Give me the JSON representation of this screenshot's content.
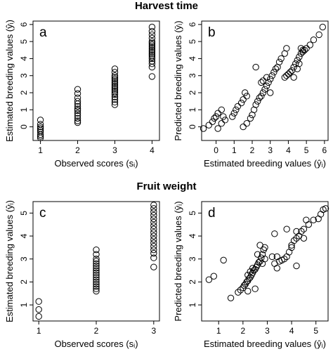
{
  "sections": {
    "top_title": "Harvest time",
    "bottom_title": "Fruit weight"
  },
  "colors": {
    "axis": "#000000",
    "marker": "#000000",
    "background": "#ffffff"
  },
  "chart_data": [
    {
      "panel": "a",
      "type": "scatter",
      "marker": "open-circle",
      "xlabel": "Observed scores (sᵢ)",
      "ylabel": "Estimated breeding values (ŷᵢ)",
      "xlim": [
        0.8,
        4.2
      ],
      "ylim": [
        -0.8,
        6.2
      ],
      "xticks": [
        1,
        2,
        3,
        4
      ],
      "yticks": [
        0,
        1,
        2,
        3,
        4,
        5,
        6
      ],
      "series": [
        {
          "points": [
            [
              1,
              0.4
            ],
            [
              1,
              0.15
            ],
            [
              1,
              0.0
            ],
            [
              1,
              -0.1
            ],
            [
              1,
              -0.2
            ],
            [
              1,
              -0.3
            ],
            [
              1,
              -0.45
            ],
            [
              1,
              -0.55
            ],
            [
              1,
              -0.65
            ],
            [
              2,
              2.2
            ],
            [
              2,
              1.95
            ],
            [
              2,
              1.7
            ],
            [
              2,
              1.5
            ],
            [
              2,
              1.35
            ],
            [
              2,
              1.2
            ],
            [
              2,
              1.05
            ],
            [
              2,
              0.95
            ],
            [
              2,
              0.8
            ],
            [
              2,
              0.65
            ],
            [
              2,
              0.5
            ],
            [
              2,
              0.35
            ],
            [
              2,
              0.25
            ],
            [
              3,
              3.4
            ],
            [
              3,
              3.2
            ],
            [
              3,
              3.0
            ],
            [
              3,
              2.9
            ],
            [
              3,
              2.8
            ],
            [
              3,
              2.7
            ],
            [
              3,
              2.6
            ],
            [
              3,
              2.5
            ],
            [
              3,
              2.4
            ],
            [
              3,
              2.3
            ],
            [
              3,
              2.2
            ],
            [
              3,
              2.1
            ],
            [
              3,
              2.0
            ],
            [
              3,
              1.9
            ],
            [
              3,
              1.75
            ],
            [
              3,
              1.6
            ],
            [
              3,
              1.45
            ],
            [
              3,
              1.3
            ],
            [
              4,
              5.85
            ],
            [
              4,
              5.6
            ],
            [
              4,
              5.4
            ],
            [
              4,
              5.2
            ],
            [
              4,
              5.0
            ],
            [
              4,
              4.9
            ],
            [
              4,
              4.8
            ],
            [
              4,
              4.7
            ],
            [
              4,
              4.6
            ],
            [
              4,
              4.5
            ],
            [
              4,
              4.4
            ],
            [
              4,
              4.3
            ],
            [
              4,
              4.2
            ],
            [
              4,
              4.1
            ],
            [
              4,
              4.0
            ],
            [
              4,
              3.85
            ],
            [
              4,
              3.7
            ],
            [
              4,
              3.5
            ],
            [
              4,
              2.95
            ]
          ]
        }
      ]
    },
    {
      "panel": "b",
      "type": "scatter",
      "marker": "open-circle",
      "xlabel": "Estimated breeding values (ŷᵢ)",
      "ylabel": "Predicted breeding values (ȳᵢ)",
      "xlim": [
        -0.8,
        6.2
      ],
      "ylim": [
        -0.8,
        6.2
      ],
      "xticks": [
        0,
        1,
        2,
        3,
        4,
        5,
        6
      ],
      "yticks": [
        0,
        1,
        2,
        3,
        4,
        5,
        6
      ],
      "series": [
        {
          "points": [
            [
              -0.7,
              -0.1
            ],
            [
              -0.4,
              0.1
            ],
            [
              -0.2,
              0.3
            ],
            [
              -0.1,
              0.5
            ],
            [
              0.0,
              0.6
            ],
            [
              0.1,
              0.8
            ],
            [
              0.3,
              1.0
            ],
            [
              0.4,
              0.6
            ],
            [
              0.1,
              -0.1
            ],
            [
              0.3,
              0.2
            ],
            [
              0.5,
              0.4
            ],
            [
              0.9,
              0.6
            ],
            [
              1.0,
              0.8
            ],
            [
              1.1,
              1.0
            ],
            [
              1.2,
              1.2
            ],
            [
              1.4,
              1.4
            ],
            [
              1.5,
              1.6
            ],
            [
              1.7,
              1.8
            ],
            [
              1.6,
              2.0
            ],
            [
              1.5,
              0.0
            ],
            [
              1.7,
              0.2
            ],
            [
              1.9,
              0.5
            ],
            [
              2.0,
              0.7
            ],
            [
              2.1,
              1.0
            ],
            [
              2.2,
              1.3
            ],
            [
              2.3,
              1.5
            ],
            [
              2.4,
              1.7
            ],
            [
              2.5,
              1.8
            ],
            [
              2.6,
              2.0
            ],
            [
              2.7,
              2.2
            ],
            [
              2.8,
              2.4
            ],
            [
              2.9,
              2.6
            ],
            [
              3.0,
              2.8
            ],
            [
              3.1,
              3.0
            ],
            [
              3.2,
              3.2
            ],
            [
              3.3,
              3.4
            ],
            [
              3.4,
              3.5
            ],
            [
              3.5,
              3.8
            ],
            [
              3.6,
              4.0
            ],
            [
              3.8,
              4.3
            ],
            [
              3.9,
              4.6
            ],
            [
              2.2,
              3.5
            ],
            [
              2.5,
              2.6
            ],
            [
              2.6,
              2.7
            ],
            [
              2.8,
              2.9
            ],
            [
              3.0,
              2.0
            ],
            [
              3.8,
              2.9
            ],
            [
              3.9,
              3.0
            ],
            [
              4.0,
              3.1
            ],
            [
              4.1,
              3.2
            ],
            [
              4.2,
              3.3
            ],
            [
              4.3,
              3.5
            ],
            [
              4.4,
              3.7
            ],
            [
              4.5,
              3.9
            ],
            [
              4.6,
              4.1
            ],
            [
              4.7,
              4.3
            ],
            [
              4.8,
              4.4
            ],
            [
              4.9,
              4.5
            ],
            [
              5.0,
              4.6
            ],
            [
              5.2,
              4.8
            ],
            [
              5.4,
              5.1
            ],
            [
              5.7,
              5.4
            ],
            [
              5.9,
              5.85
            ],
            [
              4.3,
              2.9
            ],
            [
              4.5,
              3.4
            ],
            [
              4.6,
              3.7
            ],
            [
              4.7,
              4.6
            ],
            [
              4.8,
              4.5
            ]
          ]
        }
      ]
    },
    {
      "panel": "c",
      "type": "scatter",
      "marker": "open-circle",
      "xlabel": "Observed scores (sᵢ)",
      "ylabel": "Estimated breeding values (ŷᵢ)",
      "xlim": [
        0.9,
        3.1
      ],
      "ylim": [
        0.3,
        5.5
      ],
      "xticks": [
        1,
        2,
        3
      ],
      "yticks": [
        1,
        2,
        3,
        4,
        5
      ],
      "series": [
        {
          "points": [
            [
              1,
              1.15
            ],
            [
              1,
              0.8
            ],
            [
              1,
              0.5
            ],
            [
              2,
              3.4
            ],
            [
              2,
              3.2
            ],
            [
              2,
              3.0
            ],
            [
              2,
              2.9
            ],
            [
              2,
              2.8
            ],
            [
              2,
              2.7
            ],
            [
              2,
              2.6
            ],
            [
              2,
              2.5
            ],
            [
              2,
              2.4
            ],
            [
              2,
              2.3
            ],
            [
              2,
              2.2
            ],
            [
              2,
              2.1
            ],
            [
              2,
              2.0
            ],
            [
              2,
              1.9
            ],
            [
              2,
              1.8
            ],
            [
              2,
              1.7
            ],
            [
              2,
              1.6
            ],
            [
              3,
              5.35
            ],
            [
              3,
              5.2
            ],
            [
              3,
              5.05
            ],
            [
              3,
              4.9
            ],
            [
              3,
              4.75
            ],
            [
              3,
              4.6
            ],
            [
              3,
              4.45
            ],
            [
              3,
              4.3
            ],
            [
              3,
              4.15
            ],
            [
              3,
              4.0
            ],
            [
              3,
              3.85
            ],
            [
              3,
              3.7
            ],
            [
              3,
              3.55
            ],
            [
              3,
              3.4
            ],
            [
              3,
              3.25
            ],
            [
              3,
              3.05
            ],
            [
              3,
              2.65
            ]
          ]
        }
      ]
    },
    {
      "panel": "d",
      "type": "scatter",
      "marker": "open-circle",
      "xlabel": "Estimated breeding values (ŷᵢ)",
      "ylabel": "Predicted breeding values (ȳᵢ)",
      "xlim": [
        0.3,
        5.5
      ],
      "ylim": [
        0.3,
        5.5
      ],
      "xticks": [
        1,
        2,
        3,
        4,
        5
      ],
      "yticks": [
        1,
        2,
        3,
        4,
        5
      ],
      "series": [
        {
          "points": [
            [
              0.6,
              2.1
            ],
            [
              0.8,
              2.25
            ],
            [
              1.2,
              2.95
            ],
            [
              1.5,
              1.3
            ],
            [
              1.8,
              1.55
            ],
            [
              1.9,
              1.65
            ],
            [
              2.0,
              1.75
            ],
            [
              2.05,
              1.85
            ],
            [
              2.1,
              1.9
            ],
            [
              2.15,
              2.0
            ],
            [
              2.2,
              2.05
            ],
            [
              2.25,
              2.15
            ],
            [
              2.3,
              2.2
            ],
            [
              2.35,
              2.3
            ],
            [
              2.4,
              2.4
            ],
            [
              2.45,
              2.5
            ],
            [
              2.5,
              2.55
            ],
            [
              2.55,
              2.65
            ],
            [
              2.6,
              2.75
            ],
            [
              2.65,
              2.85
            ],
            [
              2.7,
              2.9
            ],
            [
              2.75,
              3.05
            ],
            [
              2.8,
              3.2
            ],
            [
              2.85,
              3.4
            ],
            [
              2.2,
              2.3
            ],
            [
              2.3,
              2.45
            ],
            [
              2.4,
              2.6
            ],
            [
              2.6,
              3.2
            ],
            [
              2.7,
              3.6
            ],
            [
              2.9,
              3.0
            ],
            [
              2.2,
              1.6
            ],
            [
              2.5,
              1.7
            ],
            [
              2.8,
              2.8
            ],
            [
              3.2,
              3.1
            ],
            [
              3.4,
              3.1
            ],
            [
              3.4,
              2.6
            ],
            [
              3.3,
              2.8
            ],
            [
              3.5,
              2.9
            ],
            [
              3.6,
              2.95
            ],
            [
              3.7,
              3.0
            ],
            [
              3.8,
              3.1
            ],
            [
              3.9,
              3.3
            ],
            [
              4.0,
              3.6
            ],
            [
              4.1,
              3.8
            ],
            [
              4.2,
              3.9
            ],
            [
              4.3,
              4.0
            ],
            [
              4.4,
              4.2
            ],
            [
              4.5,
              4.3
            ],
            [
              4.7,
              4.5
            ],
            [
              4.9,
              4.7
            ],
            [
              5.1,
              4.75
            ],
            [
              5.2,
              4.95
            ],
            [
              5.3,
              5.15
            ],
            [
              5.4,
              5.2
            ],
            [
              2.9,
              3.5
            ],
            [
              3.3,
              4.1
            ],
            [
              3.8,
              4.3
            ],
            [
              4.0,
              3.5
            ],
            [
              4.2,
              2.7
            ],
            [
              4.5,
              3.9
            ],
            [
              4.6,
              4.7
            ],
            [
              4.2,
              4.2
            ]
          ]
        }
      ]
    }
  ]
}
